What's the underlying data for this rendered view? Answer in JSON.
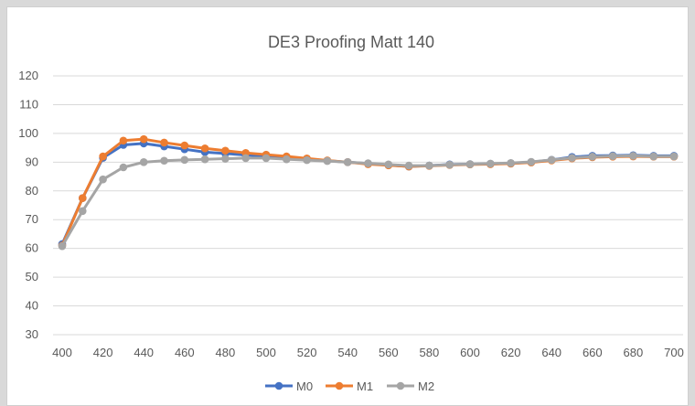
{
  "chart_data": {
    "type": "line",
    "title": "DE3 Proofing Matt 140",
    "xlabel": "",
    "ylabel": "",
    "x": [
      400,
      410,
      420,
      430,
      440,
      450,
      460,
      470,
      480,
      490,
      500,
      510,
      520,
      530,
      540,
      550,
      560,
      570,
      580,
      590,
      600,
      610,
      620,
      630,
      640,
      650,
      660,
      670,
      680,
      690,
      700
    ],
    "xlim": [
      400,
      700
    ],
    "x_ticks": [
      400,
      420,
      440,
      460,
      480,
      500,
      520,
      540,
      560,
      580,
      600,
      620,
      640,
      660,
      680,
      700
    ],
    "ylim": [
      30,
      120
    ],
    "y_ticks": [
      30,
      40,
      50,
      60,
      70,
      80,
      90,
      100,
      110,
      120
    ],
    "grid": true,
    "legend_position": "bottom",
    "series": [
      {
        "name": "M0",
        "color": "#4472c4",
        "values": [
          61.5,
          77.5,
          91.5,
          96.0,
          96.5,
          95.5,
          94.5,
          93.5,
          93.0,
          92.5,
          92.0,
          91.5,
          91.0,
          90.5,
          90.0,
          89.5,
          89.0,
          88.5,
          88.8,
          89.2,
          89.3,
          89.4,
          89.6,
          90.0,
          90.8,
          91.8,
          92.2,
          92.3,
          92.4,
          92.2,
          92.2
        ]
      },
      {
        "name": "M1",
        "color": "#ed7d31",
        "values": [
          61.0,
          77.5,
          92.0,
          97.5,
          98.0,
          96.8,
          95.8,
          94.8,
          94.0,
          93.2,
          92.6,
          92.0,
          91.3,
          90.6,
          90.0,
          89.3,
          88.9,
          88.5,
          88.7,
          89.0,
          89.2,
          89.3,
          89.5,
          89.9,
          90.6,
          91.3,
          91.7,
          91.9,
          92.0,
          91.9,
          91.9
        ]
      },
      {
        "name": "M2",
        "color": "#a5a5a5",
        "values": [
          60.8,
          73.0,
          84.0,
          88.2,
          90.0,
          90.5,
          90.8,
          91.0,
          91.2,
          91.4,
          91.4,
          91.0,
          90.7,
          90.4,
          90.0,
          89.6,
          89.2,
          88.8,
          88.8,
          89.1,
          89.3,
          89.5,
          89.7,
          90.1,
          90.8,
          91.5,
          91.9,
          92.1,
          92.2,
          92.0,
          92.0
        ]
      }
    ]
  }
}
